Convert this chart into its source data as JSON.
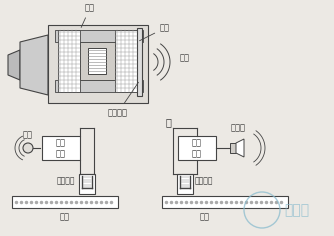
{
  "bg_color": "#ece9e4",
  "line_color": "#444444",
  "text_color": "#333333",
  "hatch_color": "#888888",
  "title_label": "甲",
  "labels": {
    "magnet": "磁铁",
    "coil": "音圈",
    "membrane": "金属膜片",
    "sound_wave": "声波",
    "microphone": "话筒",
    "amplifier_left": "放大\n电路",
    "amplifier_right": "放大\n电路",
    "recorder_left": "录音磁头",
    "recorder_right": "录音磁头",
    "tape_left": "磁带",
    "tape_right": "磁带",
    "speaker": "扬声器",
    "watermark": "日月辰"
  }
}
